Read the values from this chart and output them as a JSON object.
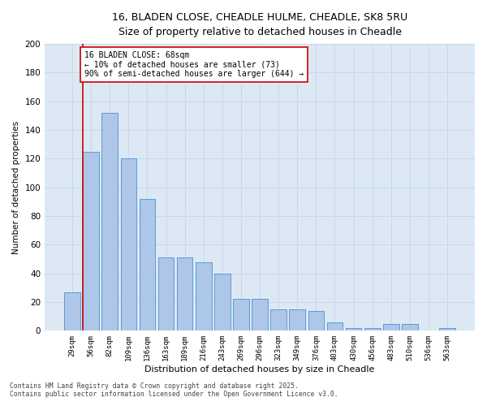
{
  "title_line1": "16, BLADEN CLOSE, CHEADLE HULME, CHEADLE, SK8 5RU",
  "title_line2": "Size of property relative to detached houses in Cheadle",
  "xlabel": "Distribution of detached houses by size in Cheadle",
  "ylabel": "Number of detached properties",
  "categories": [
    "29sqm",
    "56sqm",
    "82sqm",
    "109sqm",
    "136sqm",
    "163sqm",
    "189sqm",
    "216sqm",
    "243sqm",
    "269sqm",
    "296sqm",
    "323sqm",
    "349sqm",
    "376sqm",
    "403sqm",
    "430sqm",
    "456sqm",
    "483sqm",
    "510sqm",
    "536sqm",
    "563sqm"
  ],
  "values": [
    27,
    125,
    152,
    120,
    92,
    51,
    51,
    48,
    40,
    22,
    22,
    15,
    15,
    14,
    6,
    2,
    2,
    5,
    5,
    0,
    2
  ],
  "bar_color": "#aec6e8",
  "bar_edge_color": "#5b9bd5",
  "grid_color": "#c8d8e8",
  "background_color": "#dce9f5",
  "vline_color": "#cc0000",
  "vline_position": 0.575,
  "annotation_text": "16 BLADEN CLOSE: 68sqm\n← 10% of detached houses are smaller (73)\n90% of semi-detached houses are larger (644) →",
  "annotation_box_color": "#ffffff",
  "annotation_box_edge_color": "#cc0000",
  "footer_line1": "Contains HM Land Registry data © Crown copyright and database right 2025.",
  "footer_line2": "Contains public sector information licensed under the Open Government Licence v3.0.",
  "ylim": [
    0,
    200
  ],
  "yticks": [
    0,
    20,
    40,
    60,
    80,
    100,
    120,
    140,
    160,
    180,
    200
  ]
}
